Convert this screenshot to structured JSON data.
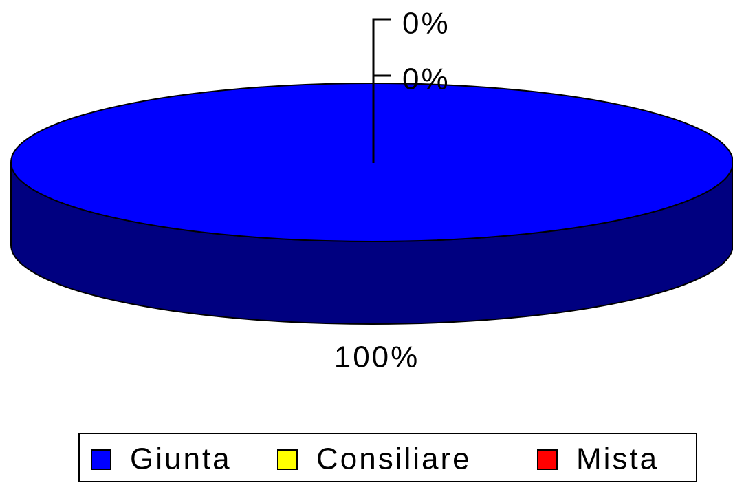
{
  "chart_data": {
    "type": "pie3d",
    "categories": [
      "Giunta",
      "Consiliare",
      "Mista"
    ],
    "series": [
      {
        "values": [
          100,
          0,
          0
        ],
        "value_labels": [
          "100%",
          "0%",
          "0%"
        ]
      }
    ],
    "colors": [
      "#0000ff",
      "#ffff00",
      "#ff0000"
    ],
    "legend": "bottom"
  }
}
